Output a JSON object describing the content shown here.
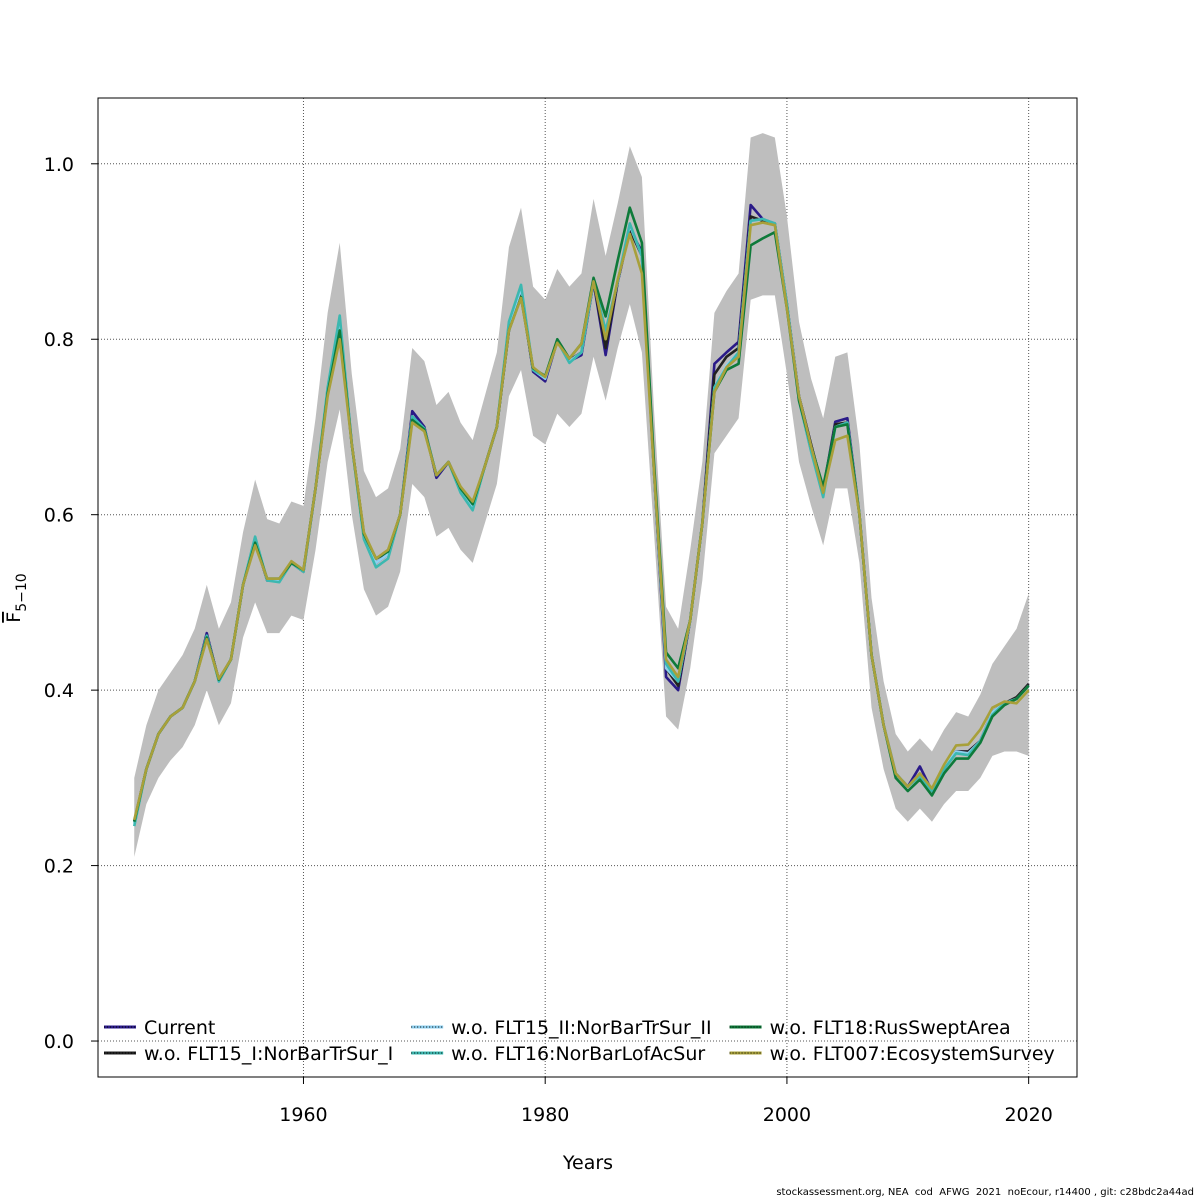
{
  "chart_data": {
    "type": "line",
    "xlabel": "Years",
    "ylabel_main": "F",
    "ylabel_sub": "5−10",
    "xlim": [
      1943,
      2024
    ],
    "ylim": [
      -0.041,
      1.075
    ],
    "x_ticks": [
      "1960",
      "1980",
      "2000",
      "2020"
    ],
    "x_tick_values": [
      1960,
      1980,
      2000,
      2020
    ],
    "y_ticks": [
      "0.0",
      "0.2",
      "0.4",
      "0.6",
      "0.8",
      "1.0"
    ],
    "y_tick_values": [
      0,
      0.2,
      0.4,
      0.6,
      0.8,
      1.0
    ],
    "grid": true,
    "legend_placement": "bottom",
    "x_start": 1946,
    "band": {
      "color": "#bebebe",
      "upper": [
        0.3,
        0.36,
        0.4,
        0.42,
        0.44,
        0.47,
        0.52,
        0.47,
        0.5,
        0.58,
        0.64,
        0.595,
        0.59,
        0.615,
        0.61,
        0.71,
        0.83,
        0.91,
        0.76,
        0.65,
        0.62,
        0.63,
        0.675,
        0.79,
        0.775,
        0.725,
        0.74,
        0.705,
        0.685,
        0.735,
        0.785,
        0.905,
        0.95,
        0.86,
        0.845,
        0.88,
        0.86,
        0.875,
        0.96,
        0.895,
        0.955,
        1.02,
        0.985,
        0.72,
        0.495,
        0.47,
        0.56,
        0.66,
        0.83,
        0.855,
        0.875,
        1.03,
        1.035,
        1.03,
        0.94,
        0.82,
        0.755,
        0.71,
        0.78,
        0.785,
        0.68,
        0.505,
        0.41,
        0.35,
        0.33,
        0.345,
        0.33,
        0.355,
        0.375,
        0.37,
        0.395,
        0.43,
        0.45,
        0.47,
        0.51
      ],
      "lower": [
        0.21,
        0.27,
        0.3,
        0.32,
        0.335,
        0.36,
        0.4,
        0.36,
        0.385,
        0.46,
        0.5,
        0.465,
        0.465,
        0.485,
        0.48,
        0.56,
        0.66,
        0.72,
        0.6,
        0.515,
        0.485,
        0.495,
        0.535,
        0.635,
        0.62,
        0.575,
        0.585,
        0.56,
        0.545,
        0.59,
        0.635,
        0.735,
        0.765,
        0.69,
        0.68,
        0.715,
        0.7,
        0.715,
        0.78,
        0.73,
        0.79,
        0.84,
        0.785,
        0.58,
        0.37,
        0.355,
        0.425,
        0.525,
        0.67,
        0.69,
        0.71,
        0.845,
        0.85,
        0.85,
        0.76,
        0.66,
        0.61,
        0.565,
        0.63,
        0.63,
        0.545,
        0.38,
        0.31,
        0.265,
        0.25,
        0.265,
        0.25,
        0.27,
        0.285,
        0.285,
        0.3,
        0.325,
        0.33,
        0.33,
        0.325
      ]
    },
    "series": [
      {
        "name": "Current",
        "color": "#2a1a88",
        "values": [
          0.25,
          0.31,
          0.35,
          0.37,
          0.38,
          0.41,
          0.465,
          0.41,
          0.435,
          0.52,
          0.57,
          0.525,
          0.525,
          0.545,
          0.535,
          0.63,
          0.74,
          0.82,
          0.68,
          0.575,
          0.545,
          0.555,
          0.6,
          0.718,
          0.7,
          0.642,
          0.66,
          0.63,
          0.61,
          0.655,
          0.7,
          0.81,
          0.855,
          0.763,
          0.752,
          0.798,
          0.775,
          0.782,
          0.865,
          0.782,
          0.865,
          0.925,
          0.9,
          0.65,
          0.415,
          0.4,
          0.48,
          0.59,
          0.772,
          0.785,
          0.797,
          0.953,
          0.937,
          0.932,
          0.84,
          0.735,
          0.68,
          0.628,
          0.706,
          0.71,
          0.6,
          0.44,
          0.36,
          0.305,
          0.29,
          0.313,
          0.285,
          0.31,
          0.33,
          0.33,
          0.342,
          0.375,
          0.385,
          0.39,
          0.407
        ]
      },
      {
        "name": "w.o. FLT15_I:NorBarTrSur_I",
        "color": "#222222",
        "values": [
          0.25,
          0.31,
          0.35,
          0.37,
          0.38,
          0.41,
          0.462,
          0.412,
          0.435,
          0.52,
          0.57,
          0.525,
          0.525,
          0.545,
          0.535,
          0.63,
          0.74,
          0.82,
          0.68,
          0.578,
          0.55,
          0.557,
          0.6,
          0.712,
          0.698,
          0.645,
          0.66,
          0.63,
          0.612,
          0.655,
          0.7,
          0.812,
          0.852,
          0.765,
          0.755,
          0.798,
          0.776,
          0.785,
          0.866,
          0.79,
          0.866,
          0.925,
          0.895,
          0.65,
          0.425,
          0.405,
          0.48,
          0.59,
          0.76,
          0.78,
          0.79,
          0.94,
          0.935,
          0.932,
          0.84,
          0.735,
          0.68,
          0.628,
          0.703,
          0.705,
          0.6,
          0.44,
          0.36,
          0.305,
          0.29,
          0.305,
          0.285,
          0.31,
          0.33,
          0.33,
          0.342,
          0.375,
          0.385,
          0.392,
          0.407
        ]
      },
      {
        "name": "w.o. FLT15_II:NorBarTrSur_II",
        "color": "#8fd0f0",
        "values": [
          0.248,
          0.31,
          0.35,
          0.37,
          0.38,
          0.41,
          0.462,
          0.41,
          0.435,
          0.52,
          0.572,
          0.525,
          0.525,
          0.545,
          0.535,
          0.63,
          0.742,
          0.823,
          0.68,
          0.575,
          0.545,
          0.555,
          0.6,
          0.712,
          0.698,
          0.645,
          0.66,
          0.628,
          0.608,
          0.655,
          0.7,
          0.815,
          0.858,
          0.765,
          0.755,
          0.798,
          0.775,
          0.785,
          0.866,
          0.805,
          0.866,
          0.93,
          0.895,
          0.65,
          0.425,
          0.41,
          0.48,
          0.59,
          0.745,
          0.77,
          0.785,
          0.935,
          0.937,
          0.932,
          0.84,
          0.735,
          0.675,
          0.625,
          0.7,
          0.705,
          0.6,
          0.44,
          0.36,
          0.305,
          0.29,
          0.305,
          0.285,
          0.312,
          0.33,
          0.328,
          0.342,
          0.375,
          0.385,
          0.39,
          0.405
        ]
      },
      {
        "name": "w.o. FLT16:NorBarLofAcSur",
        "color": "#3cb8b0",
        "values": [
          0.245,
          0.31,
          0.35,
          0.37,
          0.38,
          0.41,
          0.462,
          0.41,
          0.435,
          0.52,
          0.575,
          0.525,
          0.523,
          0.545,
          0.535,
          0.63,
          0.745,
          0.827,
          0.68,
          0.572,
          0.54,
          0.55,
          0.6,
          0.712,
          0.698,
          0.645,
          0.66,
          0.625,
          0.605,
          0.655,
          0.7,
          0.82,
          0.862,
          0.765,
          0.757,
          0.798,
          0.773,
          0.785,
          0.866,
          0.81,
          0.866,
          0.932,
          0.895,
          0.65,
          0.43,
          0.41,
          0.48,
          0.59,
          0.745,
          0.768,
          0.785,
          0.935,
          0.937,
          0.932,
          0.84,
          0.73,
          0.672,
          0.62,
          0.7,
          0.705,
          0.6,
          0.44,
          0.36,
          0.305,
          0.29,
          0.302,
          0.285,
          0.31,
          0.328,
          0.326,
          0.342,
          0.372,
          0.385,
          0.39,
          0.405
        ]
      },
      {
        "name": "w.o. FLT18:RusSweptArea",
        "color": "#0e7a3a",
        "values": [
          0.25,
          0.31,
          0.35,
          0.37,
          0.38,
          0.41,
          0.46,
          0.412,
          0.435,
          0.52,
          0.568,
          0.527,
          0.527,
          0.545,
          0.537,
          0.63,
          0.738,
          0.81,
          0.68,
          0.578,
          0.55,
          0.558,
          0.6,
          0.708,
          0.697,
          0.645,
          0.66,
          0.63,
          0.612,
          0.655,
          0.7,
          0.81,
          0.848,
          0.767,
          0.758,
          0.8,
          0.778,
          0.795,
          0.87,
          0.826,
          0.89,
          0.95,
          0.91,
          0.66,
          0.443,
          0.425,
          0.48,
          0.59,
          0.74,
          0.765,
          0.772,
          0.907,
          0.915,
          0.922,
          0.835,
          0.73,
          0.678,
          0.632,
          0.7,
          0.703,
          0.6,
          0.44,
          0.36,
          0.3,
          0.285,
          0.298,
          0.28,
          0.305,
          0.322,
          0.322,
          0.34,
          0.37,
          0.383,
          0.39,
          0.405
        ]
      },
      {
        "name": "w.o. FLT007:EcosystemSurvey",
        "color": "#a8a03a",
        "values": [
          0.252,
          0.31,
          0.35,
          0.37,
          0.38,
          0.41,
          0.458,
          0.413,
          0.435,
          0.52,
          0.565,
          0.527,
          0.527,
          0.547,
          0.537,
          0.63,
          0.735,
          0.8,
          0.68,
          0.58,
          0.55,
          0.56,
          0.6,
          0.705,
          0.695,
          0.645,
          0.66,
          0.632,
          0.615,
          0.655,
          0.7,
          0.81,
          0.847,
          0.768,
          0.757,
          0.796,
          0.778,
          0.795,
          0.866,
          0.8,
          0.868,
          0.92,
          0.875,
          0.65,
          0.435,
          0.415,
          0.48,
          0.59,
          0.74,
          0.768,
          0.78,
          0.93,
          0.933,
          0.93,
          0.835,
          0.735,
          0.678,
          0.625,
          0.685,
          0.69,
          0.6,
          0.44,
          0.36,
          0.305,
          0.29,
          0.305,
          0.288,
          0.315,
          0.337,
          0.338,
          0.355,
          0.38,
          0.387,
          0.385,
          0.4
        ]
      }
    ]
  },
  "legend": {
    "items": [
      {
        "label": "Current",
        "color": "#2a1a88"
      },
      {
        "label": "w.o. FLT15_I:NorBarTrSur_I",
        "color": "#222222"
      },
      {
        "label": "w.o. FLT15_II:NorBarTrSur_II",
        "color": "#8fd0f0"
      },
      {
        "label": "w.o. FLT16:NorBarLofAcSur",
        "color": "#3cb8b0"
      },
      {
        "label": "w.o. FLT18:RusSweptArea",
        "color": "#0e7a3a"
      },
      {
        "label": "w.o. FLT007:EcosystemSurvey",
        "color": "#a8a03a"
      }
    ]
  },
  "footer": "stockassessment.org, NEA  cod  AFWG  2021  noEcour, r14400 , git: c28bdc2a44ad"
}
